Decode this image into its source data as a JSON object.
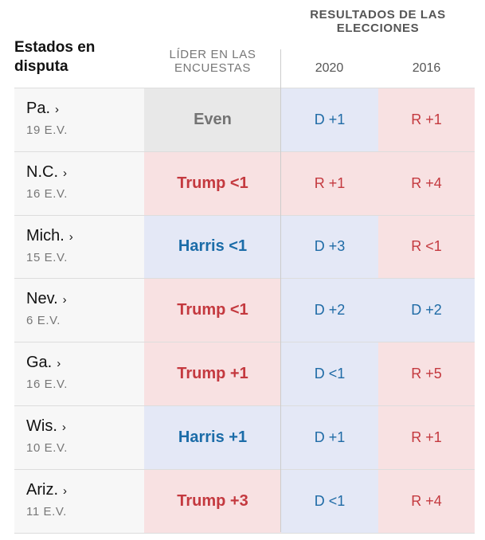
{
  "header": {
    "states_title": "Estados en disputa",
    "leader_title": "LÍDER EN LAS ENCUESTAS",
    "results_title": "RESULTADOS DE LAS ELECCIONES",
    "year_a": "2020",
    "year_b": "2016"
  },
  "colors": {
    "dem_bg": "#e4e8f6",
    "rep_bg": "#f8e1e2",
    "even_bg": "#e8e8e8",
    "dem_text": "#1f6ba6",
    "rep_text": "#c4393f"
  },
  "rows": [
    {
      "state": "Pa.",
      "ev": "19 E.V.",
      "leader": "Even",
      "leader_party": "even",
      "r2020": "D +1",
      "p2020": "d",
      "r2016": "R +1",
      "p2016": "r"
    },
    {
      "state": "N.C.",
      "ev": "16 E.V.",
      "leader": "Trump <1",
      "leader_party": "r",
      "r2020": "R +1",
      "p2020": "r",
      "r2016": "R +4",
      "p2016": "r"
    },
    {
      "state": "Mich.",
      "ev": "15 E.V.",
      "leader": "Harris <1",
      "leader_party": "d",
      "r2020": "D +3",
      "p2020": "d",
      "r2016": "R <1",
      "p2016": "r"
    },
    {
      "state": "Nev.",
      "ev": "6 E.V.",
      "leader": "Trump <1",
      "leader_party": "r",
      "r2020": "D +2",
      "p2020": "d",
      "r2016": "D +2",
      "p2016": "d"
    },
    {
      "state": "Ga.",
      "ev": "16 E.V.",
      "leader": "Trump +1",
      "leader_party": "r",
      "r2020": "D <1",
      "p2020": "d",
      "r2016": "R +5",
      "p2016": "r"
    },
    {
      "state": "Wis.",
      "ev": "10 E.V.",
      "leader": "Harris +1",
      "leader_party": "d",
      "r2020": "D +1",
      "p2020": "d",
      "r2016": "R +1",
      "p2016": "r"
    },
    {
      "state": "Ariz.",
      "ev": "11 E.V.",
      "leader": "Trump +3",
      "leader_party": "r",
      "r2020": "D <1",
      "p2020": "d",
      "r2016": "R +4",
      "p2016": "r"
    }
  ]
}
